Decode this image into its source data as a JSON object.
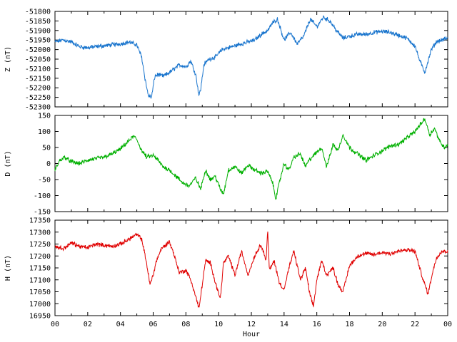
{
  "chart_data": [
    {
      "type": "line",
      "ylabel": "Z (nT)",
      "ylim": [
        -52300,
        -51800
      ],
      "yticks": [
        -51800,
        -51850,
        -51900,
        -51950,
        -52000,
        -52050,
        -52100,
        -52150,
        -52200,
        -52250,
        -52300
      ],
      "xlim": [
        0,
        24
      ],
      "color": "#1874cd",
      "series": [
        {
          "x": [
            0,
            0.5,
            1,
            1.5,
            2,
            2.5,
            3,
            3.5,
            4,
            4.5,
            5,
            5.3,
            5.5,
            5.7,
            5.9,
            6.1,
            6.3,
            6.6,
            7,
            7.3,
            7.6,
            8,
            8.3,
            8.6,
            8.8,
            8.9,
            9.1,
            9.4,
            9.8,
            10.2,
            10.6,
            11,
            11.4,
            11.8,
            12.2,
            12.6,
            13,
            13.3,
            13.6,
            14,
            14.4,
            14.8,
            15.2,
            15.6,
            16,
            16.4,
            16.8,
            17.2,
            17.6,
            18,
            18.5,
            19,
            19.5,
            20,
            20.5,
            21,
            21.5,
            22,
            22.3,
            22.6,
            22.8,
            23,
            23.3,
            23.6,
            24
          ],
          "values": [
            -51960,
            -51950,
            -51960,
            -51985,
            -51990,
            -51985,
            -51980,
            -51975,
            -51970,
            -51960,
            -51975,
            -52040,
            -52150,
            -52240,
            -52250,
            -52140,
            -52130,
            -52140,
            -52120,
            -52100,
            -52080,
            -52090,
            -52060,
            -52130,
            -52240,
            -52210,
            -52080,
            -52050,
            -52040,
            -52000,
            -51990,
            -51980,
            -51970,
            -51960,
            -51950,
            -51920,
            -51900,
            -51860,
            -51840,
            -51950,
            -51910,
            -51970,
            -51930,
            -51840,
            -51880,
            -51830,
            -51850,
            -51900,
            -51940,
            -51930,
            -51920,
            -51920,
            -51910,
            -51905,
            -51910,
            -51925,
            -51940,
            -51980,
            -52060,
            -52120,
            -52060,
            -52000,
            -51960,
            -51950,
            -51940
          ]
        }
      ]
    },
    {
      "type": "line",
      "ylabel": "D (nT)",
      "ylim": [
        -150,
        150
      ],
      "yticks": [
        150,
        100,
        50,
        0,
        -50,
        -100,
        -150
      ],
      "xlim": [
        0,
        24
      ],
      "color": "#00b000",
      "series": [
        {
          "x": [
            0,
            0.3,
            0.6,
            1,
            1.5,
            2,
            2.5,
            3,
            3.5,
            4,
            4.5,
            4.8,
            5,
            5.3,
            5.6,
            6,
            6.3,
            6.6,
            7,
            7.4,
            7.8,
            8.2,
            8.6,
            8.9,
            9.2,
            9.5,
            9.8,
            10.1,
            10.3,
            10.6,
            11,
            11.4,
            11.8,
            12.2,
            12.6,
            13,
            13.3,
            13.5,
            13.8,
            14,
            14.3,
            14.6,
            15,
            15.3,
            15.6,
            16,
            16.3,
            16.6,
            17,
            17.3,
            17.6,
            18,
            18.5,
            19,
            19.5,
            20,
            20.5,
            21,
            21.5,
            22,
            22.3,
            22.6,
            22.9,
            23.2,
            23.5,
            23.8,
            24
          ],
          "values": [
            -20,
            10,
            20,
            5,
            0,
            10,
            15,
            20,
            30,
            45,
            70,
            85,
            75,
            40,
            20,
            25,
            10,
            -10,
            -20,
            -40,
            -60,
            -70,
            -45,
            -80,
            -20,
            -50,
            -40,
            -80,
            -95,
            -20,
            -10,
            -30,
            -5,
            -20,
            -30,
            -25,
            -60,
            -110,
            -40,
            0,
            -20,
            20,
            30,
            -10,
            15,
            35,
            50,
            -10,
            60,
            40,
            90,
            50,
            30,
            10,
            25,
            40,
            55,
            60,
            80,
            100,
            120,
            140,
            90,
            110,
            70,
            50,
            60
          ]
        }
      ]
    },
    {
      "type": "line",
      "ylabel": "H (nT)",
      "ylim": [
        16950,
        17350
      ],
      "yticks": [
        17350,
        17300,
        17250,
        17200,
        17150,
        17100,
        17050,
        17000,
        16950
      ],
      "xlim": [
        0,
        24
      ],
      "color": "#e00000",
      "series": [
        {
          "x": [
            0,
            0.5,
            1,
            1.5,
            2,
            2.5,
            3,
            3.5,
            4,
            4.5,
            5,
            5.3,
            5.6,
            5.8,
            6,
            6.2,
            6.5,
            7,
            7.3,
            7.6,
            8,
            8.3,
            8.6,
            8.8,
            9,
            9.2,
            9.5,
            9.8,
            10.1,
            10.3,
            10.6,
            11,
            11.4,
            11.8,
            12.2,
            12.6,
            12.9,
            13,
            13.1,
            13.4,
            13.7,
            14,
            14.3,
            14.6,
            15,
            15.3,
            15.6,
            15.8,
            16,
            16.3,
            16.6,
            17,
            17.3,
            17.6,
            18,
            18.5,
            19,
            19.5,
            20,
            20.5,
            21,
            21.5,
            22,
            22.2,
            22.5,
            22.8,
            23,
            23.3,
            23.6,
            24
          ],
          "values": [
            17240,
            17230,
            17255,
            17240,
            17235,
            17250,
            17245,
            17240,
            17250,
            17270,
            17290,
            17270,
            17170,
            17080,
            17120,
            17180,
            17230,
            17260,
            17200,
            17130,
            17140,
            17100,
            17030,
            16980,
            17080,
            17180,
            17170,
            17090,
            17020,
            17170,
            17200,
            17120,
            17220,
            17120,
            17200,
            17250,
            17180,
            17310,
            17140,
            17180,
            17090,
            17060,
            17150,
            17220,
            17100,
            17150,
            17030,
            16990,
            17100,
            17180,
            17120,
            17150,
            17080,
            17050,
            17160,
            17200,
            17210,
            17205,
            17215,
            17210,
            17220,
            17225,
            17220,
            17170,
            17100,
            17040,
            17110,
            17190,
            17220,
            17220
          ]
        }
      ]
    }
  ],
  "xaxis": {
    "label": "Hour",
    "ticklabels": [
      "00",
      "02",
      "04",
      "06",
      "08",
      "10",
      "12",
      "14",
      "16",
      "18",
      "20",
      "22",
      "00"
    ]
  }
}
